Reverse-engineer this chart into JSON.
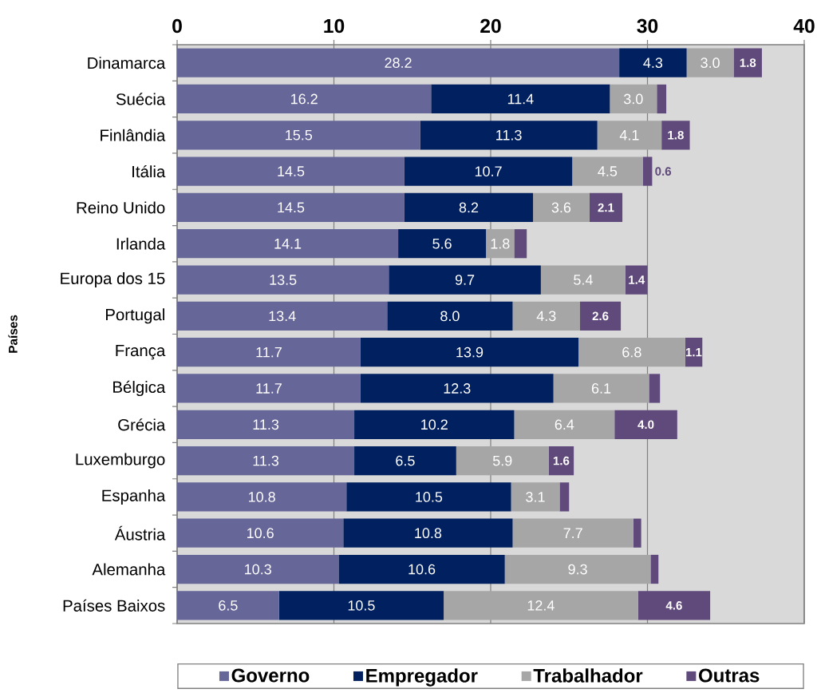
{
  "chart_data": {
    "type": "bar",
    "orientation": "horizontal",
    "stacked": true,
    "ylabel": "Países",
    "categories": [
      "Dinamarca",
      "Suécia",
      "Finlândia",
      "Itália",
      "Reino Unido",
      "Irlanda",
      "Europa dos 15",
      "Portugal",
      "França",
      "Bélgica",
      "Grécia",
      "Luxemburgo",
      "Espanha",
      "Áustria",
      "Alemanha",
      "Países Baixos"
    ],
    "series": [
      {
        "name": "Governo",
        "color": "#666699",
        "values": [
          28.2,
          16.2,
          15.5,
          14.5,
          14.5,
          14.1,
          13.5,
          13.4,
          11.7,
          11.7,
          11.3,
          11.3,
          10.8,
          10.6,
          10.3,
          6.5
        ],
        "value_labels": [
          "28.2",
          "16.2",
          "15.5",
          "14.5",
          "14.5",
          "14.1",
          "13.5",
          "13.4",
          "11.7",
          "11.7",
          "11.3",
          "11.3",
          "10.8",
          "10.6",
          "10.3",
          "6.5"
        ]
      },
      {
        "name": "Empregador",
        "color": "#002060",
        "values": [
          4.3,
          11.4,
          11.3,
          10.7,
          8.2,
          5.6,
          9.7,
          8.0,
          13.9,
          12.3,
          10.2,
          6.5,
          10.5,
          10.8,
          10.6,
          10.5
        ],
        "value_labels": [
          "4.3",
          "11.4",
          "11.3",
          "10.7",
          "8.2",
          "5.6",
          "9.7",
          "8.0",
          "13.9",
          "12.3",
          "10.2",
          "6.5",
          "10.5",
          "10.8",
          "10.6",
          "10.5"
        ]
      },
      {
        "name": "Trabalhador",
        "color": "#a6a6a6",
        "values": [
          3.0,
          3.0,
          4.1,
          4.5,
          3.6,
          1.8,
          5.4,
          4.3,
          6.8,
          6.1,
          6.4,
          5.9,
          3.1,
          7.7,
          9.3,
          12.4
        ],
        "value_labels": [
          "3.0",
          "3.0",
          "4.1",
          "4.5",
          "3.6",
          "1.8",
          "5.4",
          "4.3",
          "6.8",
          "6.1",
          "6.4",
          "5.9",
          "3.1",
          "7.7",
          "9.3",
          "12.4"
        ]
      },
      {
        "name": "Outras",
        "color": "#604a7b",
        "values": [
          1.8,
          0.6,
          1.8,
          0.6,
          2.1,
          0.8,
          1.4,
          2.6,
          1.1,
          0.7,
          4.0,
          1.6,
          0.6,
          0.5,
          0.5,
          4.6
        ],
        "value_labels": [
          "1.8",
          null,
          "1.8",
          "0.6",
          "2.1",
          null,
          "1.4",
          "2.6",
          "1.1",
          null,
          "4.0",
          "1.6",
          null,
          null,
          null,
          "4.6"
        ]
      }
    ],
    "xlim": [
      0,
      40
    ],
    "xticks": [
      0,
      10,
      20,
      30,
      40
    ],
    "grid": "x",
    "legend": "bottom"
  }
}
